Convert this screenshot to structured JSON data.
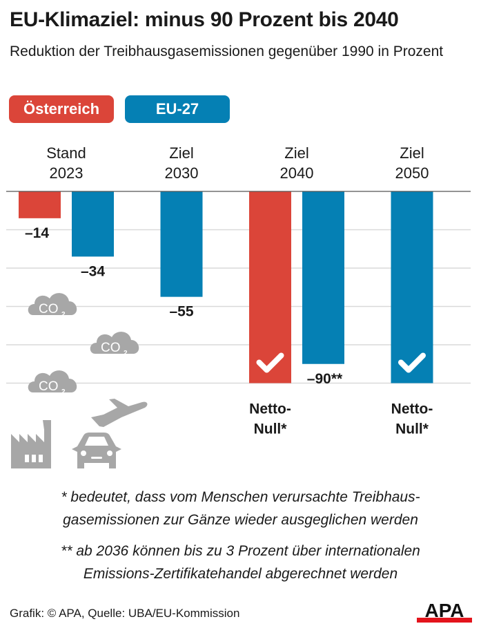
{
  "title": "EU-Klimaziel: minus 90 Prozent bis 2040",
  "subtitle": "Reduktion der Treibhausgasemissionen gegenüber 1990 in Prozent",
  "legend": [
    {
      "label": "Österreich",
      "color": "#db4539"
    },
    {
      "label": "EU-27",
      "color": "#0580b4"
    }
  ],
  "chart_data": {
    "type": "bar",
    "title": "EU-Klimaziel: minus 90 Prozent bis 2040",
    "ylabel": "Reduktion der Treibhausgasemissionen gegenüber 1990 in Prozent",
    "ylim": [
      -100,
      0
    ],
    "grid": true,
    "gridlines": [
      0,
      -20,
      -40,
      -60,
      -80,
      -100
    ],
    "categories": [
      "Stand\n2023",
      "Ziel\n2030",
      "Ziel\n2040",
      "Ziel\n2050"
    ],
    "series": [
      {
        "name": "Österreich",
        "color": "#db4539",
        "values": [
          -14,
          null,
          -100,
          null
        ],
        "labels": [
          "–14",
          "",
          "Netto-\nNull*",
          ""
        ],
        "checkmark": [
          false,
          false,
          true,
          false
        ]
      },
      {
        "name": "EU-27",
        "color": "#0580b4",
        "values": [
          -34,
          -55,
          -90,
          -100
        ],
        "labels": [
          "–34",
          "–55",
          "–90**",
          "Netto-\nNull*"
        ],
        "checkmark": [
          false,
          false,
          false,
          true
        ]
      }
    ]
  },
  "notes": [
    "* bedeutet, dass vom Menschen verursachte Treibhaus-\ngasemissionen zur Gänze wieder ausgeglichen werden",
    "** ab 2036 können bis zu 3 Prozent über internationalen\nEmissions-Zertifikatehandel abgerechnet werden"
  ],
  "icons": [
    "co2-cloud-icon",
    "co2-cloud-icon",
    "co2-cloud-icon",
    "airplane-icon",
    "factory-icon",
    "car-icon"
  ],
  "co2_label": "CO",
  "co2_sub": "2",
  "credit": "Grafik: © APA, Quelle: UBA/EU-Kommission",
  "logo": "APA"
}
